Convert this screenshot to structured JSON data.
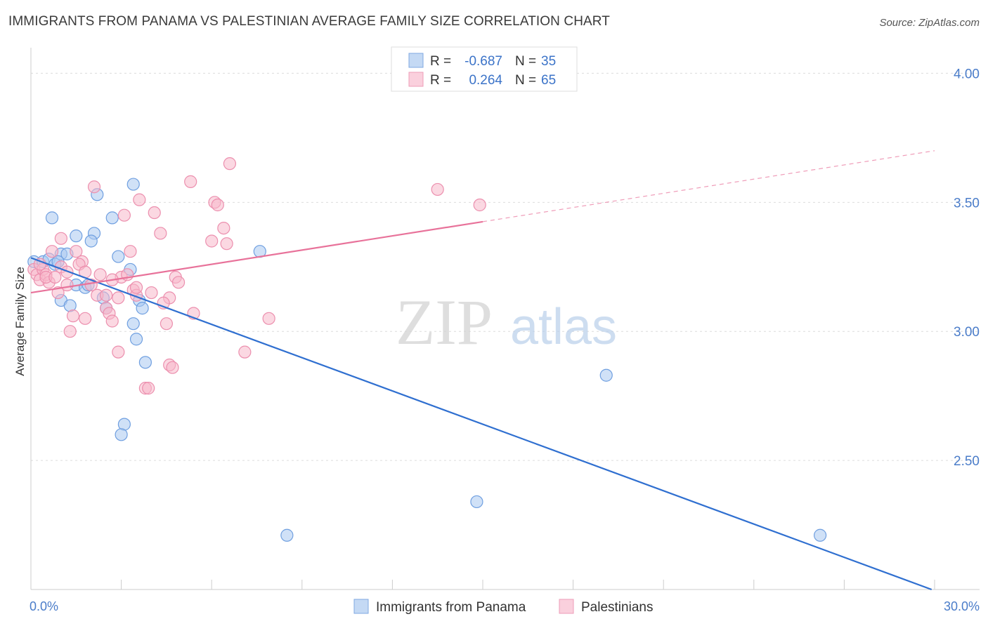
{
  "title": "IMMIGRANTS FROM PANAMA VS PALESTINIAN AVERAGE FAMILY SIZE CORRELATION CHART",
  "source": "Source: ZipAtlas.com",
  "watermark": {
    "part1": "ZIP",
    "part2": "atlas"
  },
  "stats_legend": [
    {
      "r_label": "R =",
      "r_value": "-0.687",
      "n_label": "N =",
      "n_value": "35",
      "color": "#a9c8f0",
      "stroke": "#6f9fe0"
    },
    {
      "r_label": "R =",
      "r_value": "0.264",
      "n_label": "N =",
      "n_value": "65",
      "color": "#f7b8cb",
      "stroke": "#ec8fae"
    }
  ],
  "chart_data": {
    "type": "scatter",
    "ylabel": "Average Family Size",
    "xlim": [
      0,
      30
    ],
    "ylim": [
      2.0,
      4.08
    ],
    "x_tick_labels": {
      "min": "0.0%",
      "max": "30.0%"
    },
    "y_ticks": [
      {
        "value": 4.0,
        "label": "4.00"
      },
      {
        "value": 3.5,
        "label": "3.50"
      },
      {
        "value": 3.0,
        "label": "3.00"
      },
      {
        "value": 2.5,
        "label": "2.50"
      }
    ],
    "grid": true,
    "legend_position": "bottom-center",
    "series": [
      {
        "name": "Immigrants from Panama",
        "color": "#a9c8f0",
        "stroke": "#6f9fe0",
        "line_color": "#2f6fd0",
        "trend": {
          "x0": 0,
          "y0": 3.285,
          "x1": 29.9,
          "y1": 2.0,
          "solid_to": 29.9
        },
        "points": [
          [
            0.1,
            3.27
          ],
          [
            0.4,
            3.27
          ],
          [
            0.6,
            3.28
          ],
          [
            0.8,
            3.26
          ],
          [
            1.0,
            3.3
          ],
          [
            0.7,
            3.44
          ],
          [
            1.2,
            3.3
          ],
          [
            0.9,
            3.27
          ],
          [
            2.1,
            3.38
          ],
          [
            1.5,
            3.37
          ],
          [
            2.0,
            3.35
          ],
          [
            2.7,
            3.44
          ],
          [
            2.2,
            3.53
          ],
          [
            3.4,
            3.57
          ],
          [
            2.9,
            3.29
          ],
          [
            1.0,
            3.12
          ],
          [
            1.3,
            3.1
          ],
          [
            1.5,
            3.18
          ],
          [
            1.8,
            3.17
          ],
          [
            1.9,
            3.18
          ],
          [
            2.4,
            3.13
          ],
          [
            2.5,
            3.09
          ],
          [
            3.3,
            3.24
          ],
          [
            3.6,
            3.12
          ],
          [
            3.7,
            3.09
          ],
          [
            3.4,
            3.03
          ],
          [
            3.5,
            2.97
          ],
          [
            3.8,
            2.88
          ],
          [
            3.1,
            2.64
          ],
          [
            3.0,
            2.6
          ],
          [
            7.6,
            3.31
          ],
          [
            19.1,
            2.83
          ],
          [
            14.8,
            2.34
          ],
          [
            8.5,
            2.21
          ],
          [
            26.2,
            2.21
          ]
        ]
      },
      {
        "name": "Palestinians",
        "color": "#f7b8cb",
        "stroke": "#ec8fae",
        "line_color": "#e8729a",
        "trend": {
          "x0": 0,
          "y0": 3.15,
          "x1": 30,
          "y1": 3.7,
          "solid_to": 15
        },
        "points": [
          [
            0.1,
            3.24
          ],
          [
            0.2,
            3.22
          ],
          [
            0.3,
            3.2
          ],
          [
            0.4,
            3.24
          ],
          [
            0.5,
            3.22
          ],
          [
            0.6,
            3.19
          ],
          [
            0.3,
            3.26
          ],
          [
            0.5,
            3.21
          ],
          [
            0.8,
            3.21
          ],
          [
            1.0,
            3.25
          ],
          [
            1.2,
            3.23
          ],
          [
            0.9,
            3.15
          ],
          [
            1.0,
            3.36
          ],
          [
            1.5,
            3.31
          ],
          [
            1.7,
            3.27
          ],
          [
            1.6,
            3.26
          ],
          [
            1.8,
            3.23
          ],
          [
            2.0,
            3.18
          ],
          [
            2.2,
            3.14
          ],
          [
            2.5,
            3.09
          ],
          [
            2.6,
            3.07
          ],
          [
            2.7,
            3.04
          ],
          [
            2.9,
            3.13
          ],
          [
            3.0,
            3.21
          ],
          [
            3.2,
            3.22
          ],
          [
            3.4,
            3.16
          ],
          [
            3.5,
            3.14
          ],
          [
            3.3,
            3.31
          ],
          [
            3.1,
            3.45
          ],
          [
            3.6,
            3.51
          ],
          [
            4.1,
            3.46
          ],
          [
            4.3,
            3.38
          ],
          [
            5.3,
            3.58
          ],
          [
            6.1,
            3.5
          ],
          [
            6.2,
            3.49
          ],
          [
            6.4,
            3.4
          ],
          [
            6.5,
            3.34
          ],
          [
            6.6,
            3.65
          ],
          [
            6.0,
            3.35
          ],
          [
            2.1,
            3.56
          ],
          [
            4.8,
            3.21
          ],
          [
            4.9,
            3.19
          ],
          [
            5.4,
            3.07
          ],
          [
            4.6,
            3.13
          ],
          [
            4.5,
            3.03
          ],
          [
            4.6,
            2.87
          ],
          [
            4.7,
            2.86
          ],
          [
            3.8,
            2.78
          ],
          [
            3.9,
            2.78
          ],
          [
            2.9,
            2.92
          ],
          [
            7.1,
            2.92
          ],
          [
            7.9,
            3.05
          ],
          [
            13.5,
            3.55
          ],
          [
            14.9,
            3.49
          ],
          [
            1.3,
            3.0
          ],
          [
            1.4,
            3.06
          ],
          [
            1.8,
            3.05
          ],
          [
            2.3,
            3.22
          ],
          [
            2.7,
            3.2
          ],
          [
            3.5,
            3.17
          ],
          [
            4.0,
            3.15
          ],
          [
            4.4,
            3.11
          ],
          [
            1.2,
            3.18
          ],
          [
            0.7,
            3.31
          ],
          [
            2.5,
            3.14
          ]
        ]
      }
    ]
  }
}
